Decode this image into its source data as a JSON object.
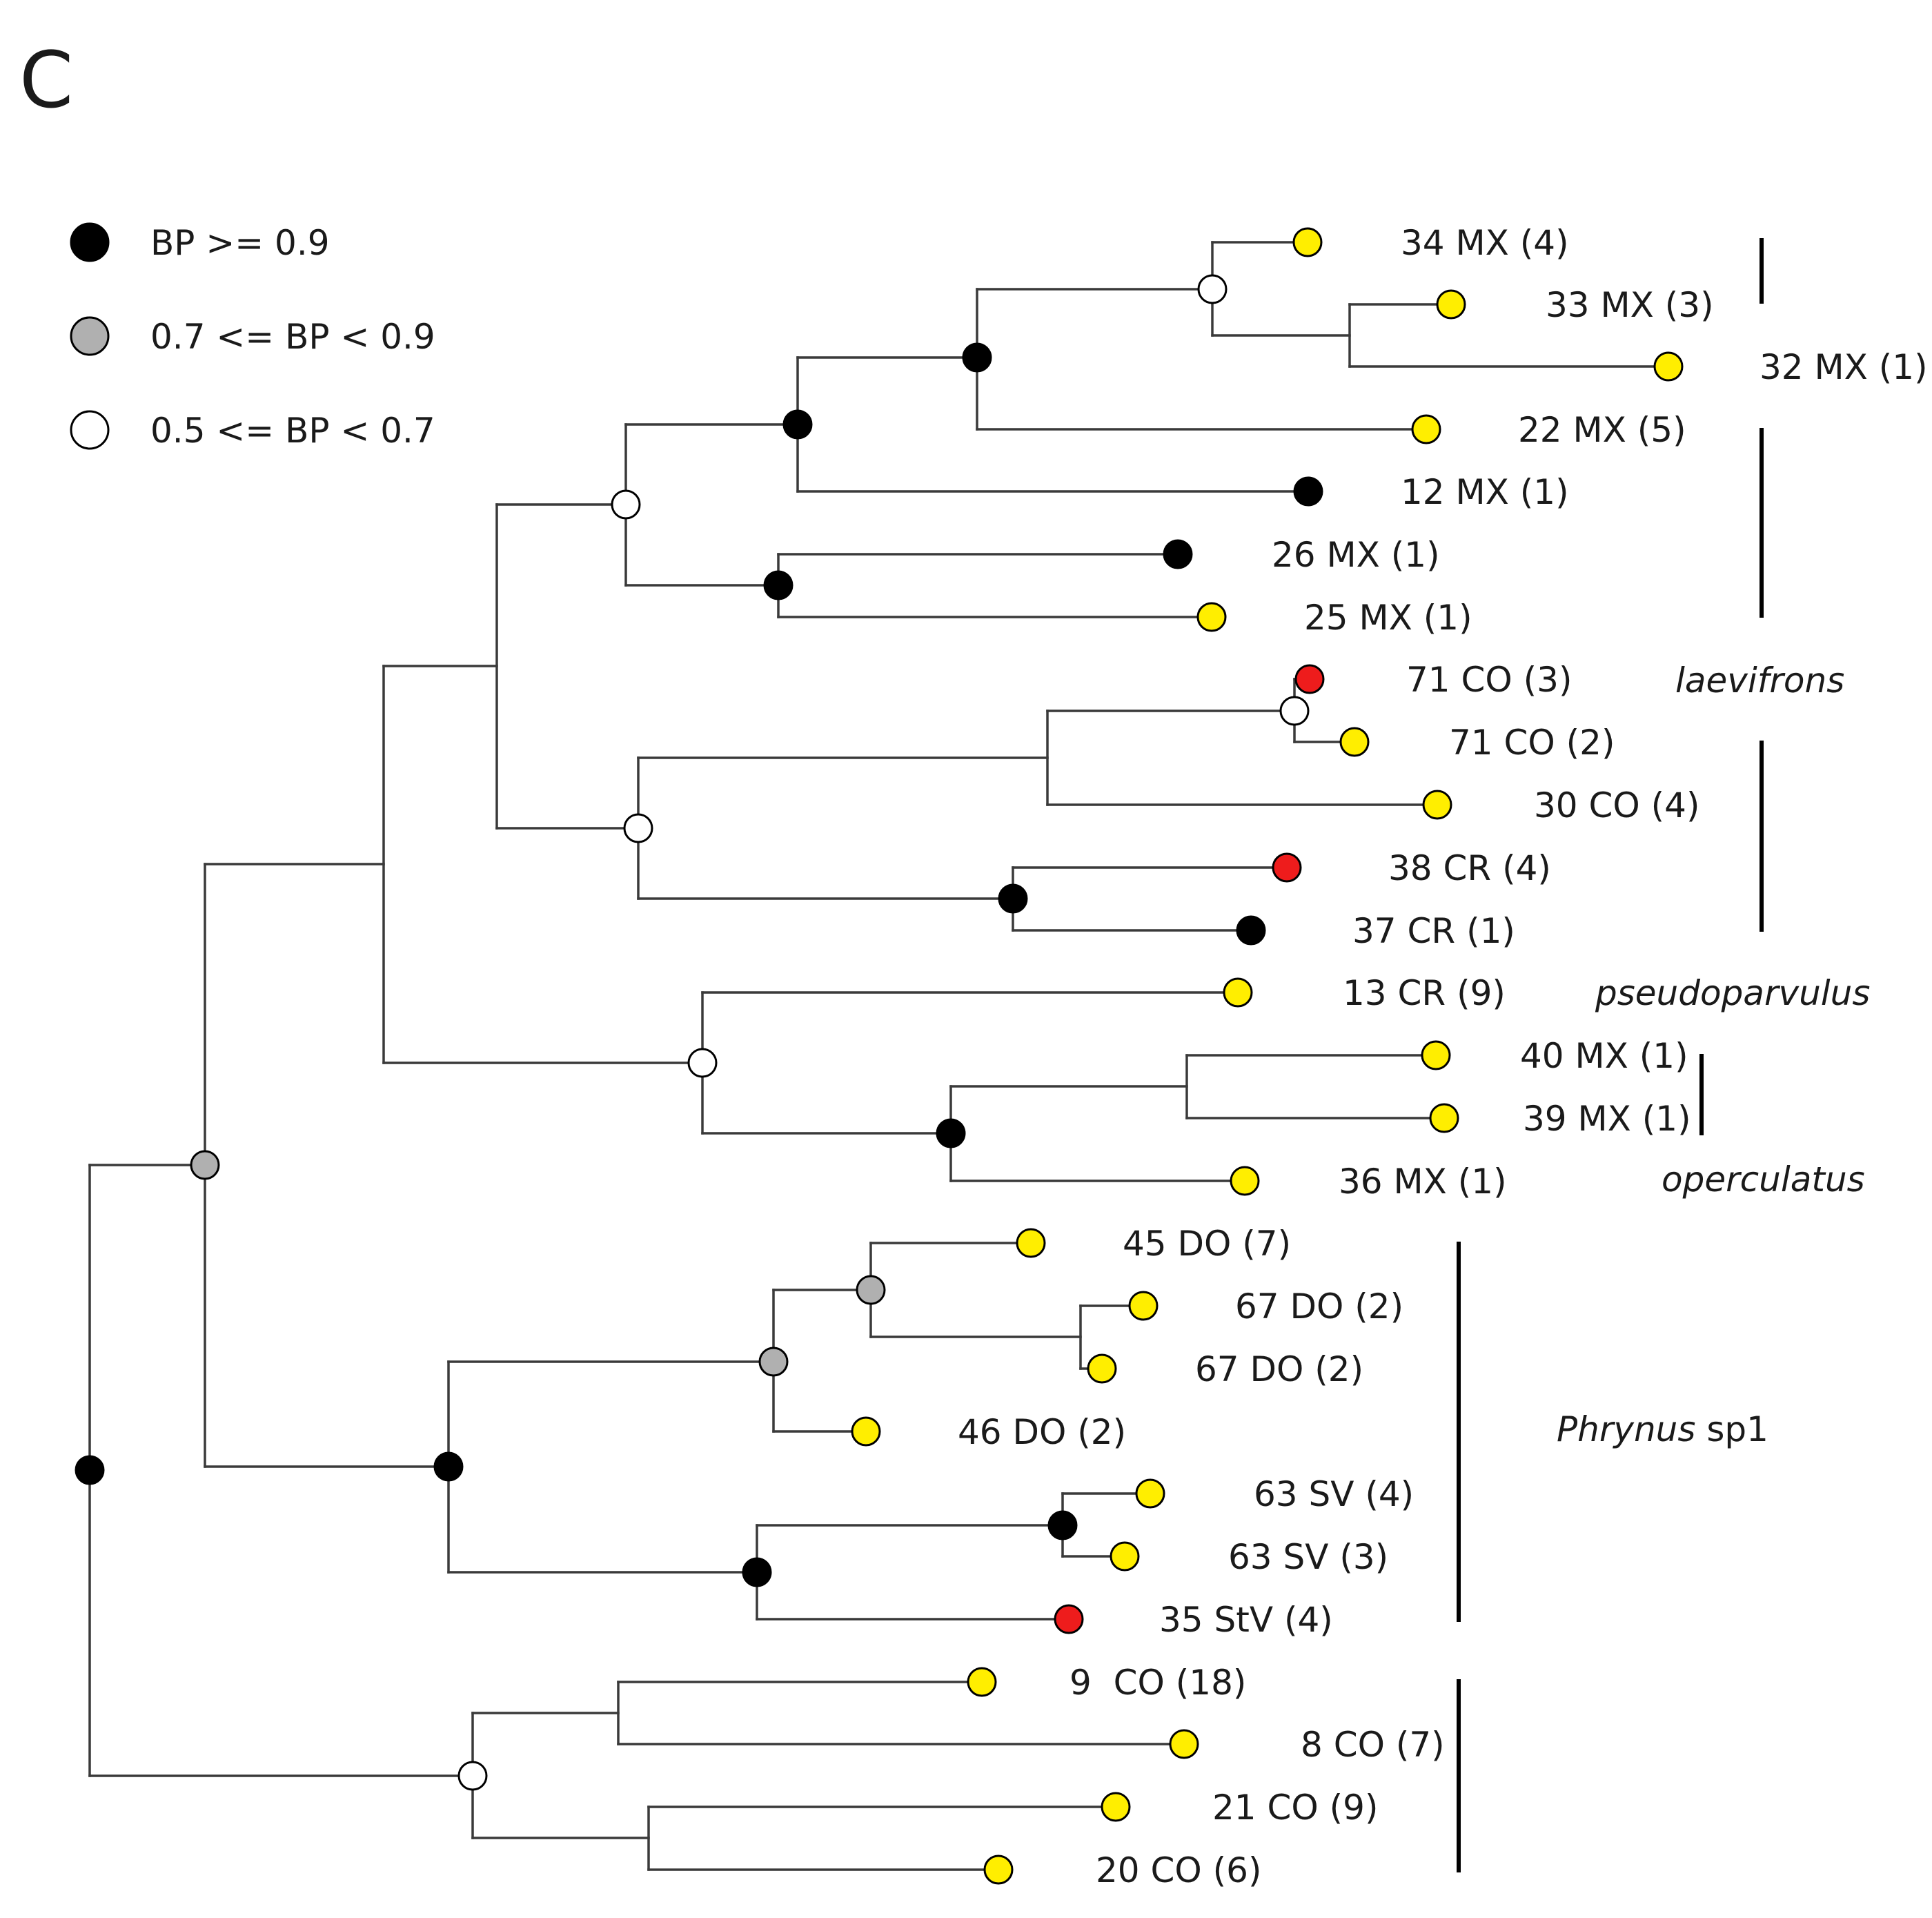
{
  "panel_label": "C",
  "colors": {
    "black": "#000000",
    "gray": "#b0b0b0",
    "white": "#ffffff",
    "yellow": "#ffee00",
    "red": "#ee1c1c",
    "branch": "#3a3a3a"
  },
  "legend": [
    {
      "color": "black",
      "label": "BP >= 0.9"
    },
    {
      "color": "gray",
      "label": "0.7 <= BP < 0.9"
    },
    {
      "color": "white",
      "label": "0.5 <= BP < 0.7"
    }
  ],
  "tips": [
    {
      "id": "t34",
      "label": "34 MX (4)",
      "color": "yellow"
    },
    {
      "id": "t33",
      "label": "33 MX (3)",
      "color": "yellow"
    },
    {
      "id": "t32",
      "label": "32 MX (1)",
      "color": "yellow"
    },
    {
      "id": "t22",
      "label": "22 MX (5)",
      "color": "yellow"
    },
    {
      "id": "t12",
      "label": "12 MX (1)",
      "color": "black"
    },
    {
      "id": "t26",
      "label": "26 MX (1)",
      "color": "black"
    },
    {
      "id": "t25",
      "label": "25 MX (1)",
      "color": "yellow"
    },
    {
      "id": "t71a",
      "label": "71 CO (3)",
      "color": "red"
    },
    {
      "id": "t71b",
      "label": "71 CO (2)",
      "color": "yellow"
    },
    {
      "id": "t30",
      "label": "30 CO (4)",
      "color": "yellow"
    },
    {
      "id": "t38",
      "label": "38 CR (4)",
      "color": "red"
    },
    {
      "id": "t37",
      "label": "37 CR (1)",
      "color": "black"
    },
    {
      "id": "t13",
      "label": "13 CR (9)",
      "color": "yellow"
    },
    {
      "id": "t40",
      "label": "40 MX (1)",
      "color": "yellow"
    },
    {
      "id": "t39",
      "label": "39 MX (1)",
      "color": "yellow"
    },
    {
      "id": "t36",
      "label": "36 MX (1)",
      "color": "yellow"
    },
    {
      "id": "t45",
      "label": "45 DO (7)",
      "color": "yellow"
    },
    {
      "id": "t67a",
      "label": "67 DO (2)",
      "color": "yellow"
    },
    {
      "id": "t67b",
      "label": "67 DO (2)",
      "color": "yellow"
    },
    {
      "id": "t46",
      "label": "46 DO (2)",
      "color": "yellow"
    },
    {
      "id": "t63a",
      "label": "63 SV (4)",
      "color": "yellow"
    },
    {
      "id": "t63b",
      "label": "63 SV (3)",
      "color": "yellow"
    },
    {
      "id": "t35",
      "label": "35 StV (4)",
      "color": "red"
    },
    {
      "id": "t9",
      "label": "9  CO (18)",
      "color": "yellow"
    },
    {
      "id": "t8",
      "label": "8 CO (7)",
      "color": "yellow"
    },
    {
      "id": "t21",
      "label": "21 CO (9)",
      "color": "yellow"
    },
    {
      "id": "t20",
      "label": "20 CO (6)",
      "color": "yellow"
    }
  ],
  "internal_nodes": [
    {
      "id": "n34_33_32",
      "support": "white",
      "children": [
        "t34",
        "n33_32"
      ]
    },
    {
      "id": "n33_32",
      "support": "none",
      "children": [
        "t33",
        "t32"
      ]
    },
    {
      "id": "n_mx_a",
      "support": "black",
      "children": [
        "n34_33_32",
        "t22"
      ]
    },
    {
      "id": "n_mx_b",
      "support": "black",
      "children": [
        "n_mx_a",
        "t12"
      ]
    },
    {
      "id": "n26_25",
      "support": "black",
      "children": [
        "t26",
        "t25"
      ]
    },
    {
      "id": "n_mx_c",
      "support": "white",
      "children": [
        "n_mx_b",
        "n26_25"
      ]
    },
    {
      "id": "n71",
      "support": "white",
      "children": [
        "t71a",
        "t71b"
      ]
    },
    {
      "id": "n71_30",
      "support": "none",
      "children": [
        "n71",
        "t30"
      ]
    },
    {
      "id": "n38_37",
      "support": "black",
      "children": [
        "t38",
        "t37"
      ]
    },
    {
      "id": "n_co_cr",
      "support": "white",
      "children": [
        "n71_30",
        "n38_37"
      ]
    },
    {
      "id": "n_upper_a",
      "support": "none",
      "children": [
        "n_mx_c",
        "n_co_cr"
      ]
    },
    {
      "id": "n40_39",
      "support": "none",
      "children": [
        "t40",
        "t39"
      ]
    },
    {
      "id": "n40_39_36",
      "support": "black",
      "children": [
        "n40_39",
        "t36"
      ]
    },
    {
      "id": "n13_group",
      "support": "white",
      "children": [
        "t13",
        "n40_39_36"
      ]
    },
    {
      "id": "n_upper",
      "support": "none",
      "children": [
        "n_upper_a",
        "n13_group"
      ]
    },
    {
      "id": "n67",
      "support": "none",
      "children": [
        "t67a",
        "t67b"
      ]
    },
    {
      "id": "n45_67",
      "support": "gray",
      "children": [
        "t45",
        "n67"
      ]
    },
    {
      "id": "n_do",
      "support": "gray",
      "children": [
        "n45_67",
        "t46"
      ]
    },
    {
      "id": "n63",
      "support": "black",
      "children": [
        "t63a",
        "t63b"
      ]
    },
    {
      "id": "n63_35",
      "support": "black",
      "children": [
        "n63",
        "t35"
      ]
    },
    {
      "id": "n_sp1",
      "support": "black",
      "children": [
        "n_do",
        "n63_35"
      ]
    },
    {
      "id": "n_mid",
      "support": "gray",
      "children": [
        "n_upper",
        "n_sp1"
      ]
    },
    {
      "id": "n9_8",
      "support": "none",
      "children": [
        "t9",
        "t8"
      ]
    },
    {
      "id": "n21_20",
      "support": "none",
      "children": [
        "t21",
        "t20"
      ]
    },
    {
      "id": "n_co4",
      "support": "white",
      "children": [
        "n9_8",
        "n21_20"
      ]
    },
    {
      "id": "root",
      "support": "black",
      "children": [
        "n_mid",
        "n_co4"
      ]
    }
  ],
  "clades": [
    {
      "id": "c_mx_small",
      "name": "",
      "italic": false
    },
    {
      "id": "c_laevifrons",
      "name": "laevifrons",
      "italic": true
    },
    {
      "id": "c_pseudoparvulus",
      "name": "pseudoparvulus",
      "italic": true
    },
    {
      "id": "c_operculatus",
      "name": "operculatus",
      "italic": true
    },
    {
      "id": "c_phrynus",
      "name": "Phrynus",
      "suffix": " sp1",
      "italic": true
    },
    {
      "id": "c_bottom",
      "name": "",
      "italic": false
    }
  ]
}
